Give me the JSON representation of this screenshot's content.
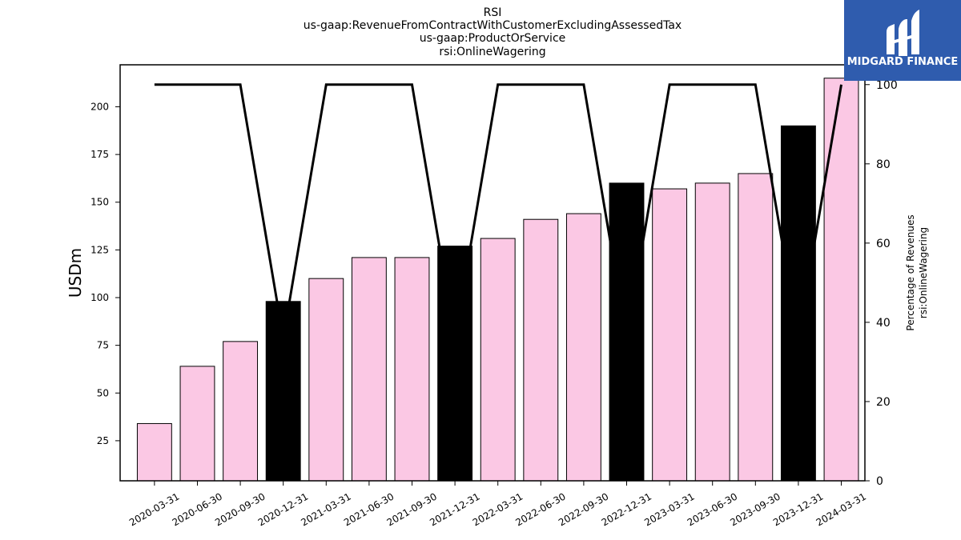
{
  "brand": {
    "name": "MIDGARD FINANCE",
    "background_color": "#2f5cae"
  },
  "chart_data": {
    "type": "bar",
    "title_lines": [
      "RSI",
      "us-gaap:RevenueFromContractWithCustomerExcludingAssessedTax",
      "us-gaap:ProductOrService",
      "rsi:OnlineWagering"
    ],
    "categories": [
      "2020-03-31",
      "2020-06-30",
      "2020-09-30",
      "2020-12-31",
      "2021-03-31",
      "2021-06-30",
      "2021-09-30",
      "2021-12-31",
      "2022-03-31",
      "2022-06-30",
      "2022-09-30",
      "2022-12-31",
      "2023-03-31",
      "2023-06-30",
      "2023-09-30",
      "2023-12-31",
      "2024-03-31"
    ],
    "series": [
      {
        "type": "bar",
        "axis": "left",
        "values": [
          34,
          64,
          77,
          98,
          110,
          121,
          121,
          127,
          131,
          141,
          144,
          160,
          157,
          160,
          165,
          190,
          215
        ],
        "highlight": [
          false,
          false,
          false,
          true,
          false,
          false,
          false,
          true,
          false,
          false,
          false,
          true,
          false,
          false,
          false,
          true,
          false
        ],
        "color": "#fbc8e4",
        "highlight_color": "#000000"
      },
      {
        "type": "line",
        "axis": "right",
        "values": [
          100,
          100,
          100,
          36,
          100,
          100,
          100,
          36,
          100,
          100,
          100,
          36,
          100,
          100,
          100,
          36,
          100
        ],
        "color": "#000000"
      }
    ],
    "ylabel": "USDm",
    "ylim": [
      4,
      222
    ],
    "yticks": [
      25,
      50,
      75,
      100,
      125,
      150,
      175,
      200
    ],
    "y2label_lines": [
      "Percentage of Revenues",
      "rsi:OnlineWagering"
    ],
    "y2lim": [
      0,
      105
    ],
    "y2ticks": [
      0,
      20,
      40,
      60,
      80,
      100
    ],
    "grid": false,
    "legend": "none"
  }
}
